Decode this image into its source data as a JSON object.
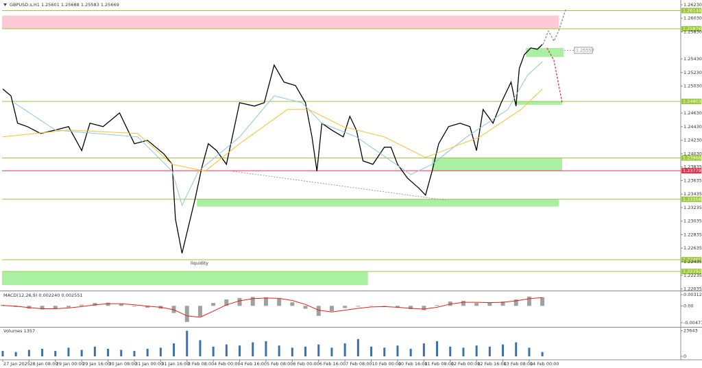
{
  "header": {
    "symbol": "GBPUSD.s,H1",
    "ohlc": [
      1.25601,
      1.25688,
      1.25583,
      1.25669
    ]
  },
  "chart_data": [
    {
      "type": "line",
      "annotation": "liquidity",
      "marker_label": 1.25557,
      "xlim": [
        -0.4,
        411.7
      ],
      "ylim": [
        1.2201,
        1.2627
      ],
      "xticks": [
        {
          "value": 0,
          "label": "27 Jan 2025"
        },
        {
          "value": 16,
          "label": "28 Jan 08:00"
        },
        {
          "value": 32,
          "label": "29 Jan 00:00"
        },
        {
          "value": 48,
          "label": "29 Jan 16:00"
        },
        {
          "value": 64,
          "label": "30 Jan 08:00"
        },
        {
          "value": 80,
          "label": "31 Jan 00:00"
        },
        {
          "value": 96,
          "label": "31 Jan 16:00"
        },
        {
          "value": 112,
          "label": "3 Feb 08:00"
        },
        {
          "value": 128,
          "label": "4 Feb 00:00"
        },
        {
          "value": 144,
          "label": "4 Feb 16:00"
        },
        {
          "value": 160,
          "label": "5 Feb 08:00"
        },
        {
          "value": 176,
          "label": "6 Feb 00:00"
        },
        {
          "value": 192,
          "label": "6 Feb 16:00"
        },
        {
          "value": 208,
          "label": "7 Feb 08:00"
        },
        {
          "value": 224,
          "label": "10 Feb 00:00"
        },
        {
          "value": 240,
          "label": "10 Feb 16:00"
        },
        {
          "value": 256,
          "label": "11 Feb 08:00"
        },
        {
          "value": 272,
          "label": "12 Feb 00:00"
        },
        {
          "value": 288,
          "label": "12 Feb 16:00"
        },
        {
          "value": 304,
          "label": "13 Feb 08:00"
        },
        {
          "value": 320,
          "label": "14 Feb 00:00"
        }
      ],
      "yticks": [
        {
          "value": 1.2623,
          "label": "1.26230"
        },
        {
          "value": 1.2603,
          "label": "1.26030"
        },
        {
          "value": 1.2583,
          "label": "1.25830"
        },
        {
          "value": 1.2543,
          "label": "1.25430"
        },
        {
          "value": 1.2523,
          "label": "1.25230"
        },
        {
          "value": 1.2503,
          "label": "1.25030"
        },
        {
          "value": 1.2463,
          "label": "1.24630"
        },
        {
          "value": 1.2443,
          "label": "1.24430"
        },
        {
          "value": 1.2423,
          "label": "1.24230"
        },
        {
          "value": 1.2403,
          "label": "1.24030"
        },
        {
          "value": 1.23835,
          "label": "1.23835"
        },
        {
          "value": 1.23635,
          "label": "1.23635"
        },
        {
          "value": 1.23435,
          "label": "1.23435"
        },
        {
          "value": 1.23235,
          "label": "1.23235"
        },
        {
          "value": 1.23035,
          "label": "1.23035"
        },
        {
          "value": 1.22835,
          "label": "1.22835"
        },
        {
          "value": 1.22635,
          "label": "1.22635"
        },
        {
          "value": 1.22435,
          "label": "1.22435"
        },
        {
          "value": 1.22235,
          "label": "1.22235"
        },
        {
          "value": 1.22035,
          "label": "1.22035"
        }
      ],
      "zones": [
        {
          "lo": 1.25876,
          "hi": 1.2607,
          "x0": -0.4,
          "x1": 338,
          "color": "#ffcad5"
        },
        {
          "lo": 1.2546,
          "hi": 1.25593,
          "x0": 318,
          "x1": 341,
          "color": "#a9f0a2"
        },
        {
          "lo": 1.24753,
          "hi": 1.24803,
          "x0": 312,
          "x1": 340,
          "color": "#a9f0a2"
        },
        {
          "lo": 1.23779,
          "hi": 1.23968,
          "x0": 261,
          "x1": 340,
          "color": "#a9f0a2"
        },
        {
          "lo": 1.2325,
          "hi": 1.23358,
          "x0": 118,
          "x1": 338,
          "color": "#a9f0a2"
        },
        {
          "lo": 1.2209,
          "hi": 1.22292,
          "x0": -0.4,
          "x1": 222,
          "color": "#a9f0a2"
        }
      ],
      "levels": [
        {
          "value": 1.26144,
          "color": "#9cc640"
        },
        {
          "value": 1.25876,
          "color": "#9cc640"
        },
        {
          "value": 1.24803,
          "color": "#9cc640"
        },
        {
          "value": 1.23968,
          "color": "#9cc640"
        },
        {
          "value": 1.23779,
          "color": "#e0334d"
        },
        {
          "value": 1.23358,
          "color": "#9cc640"
        },
        {
          "value": 1.22465,
          "color": "#9cc640"
        },
        {
          "value": 1.22292,
          "color": "#9cc640"
        }
      ],
      "series": [
        {
          "color": "#000000",
          "width": 1.3,
          "x": [
            0,
            5,
            9,
            15,
            23,
            32,
            40,
            48,
            53,
            61,
            71,
            80,
            88,
            98,
            103,
            105,
            109,
            113,
            117,
            121,
            125,
            130,
            136,
            144,
            153,
            159,
            165,
            171,
            178,
            184,
            188,
            191,
            194,
            200,
            207,
            211,
            215,
            219,
            225,
            232,
            236,
            240,
            246,
            253,
            257,
            261,
            265,
            271,
            278,
            284,
            288,
            292,
            298,
            303,
            309,
            312,
            314,
            317,
            321,
            325,
            328
          ],
          "values": [
            1.24986,
            1.24885,
            1.24481,
            1.2443,
            1.24329,
            1.2438,
            1.2443,
            1.24077,
            1.24481,
            1.2443,
            1.24633,
            1.24178,
            1.24228,
            1.24026,
            1.23874,
            1.23066,
            1.2256,
            1.22965,
            1.23369,
            1.23824,
            1.24178,
            1.24077,
            1.23874,
            1.24784,
            1.24734,
            1.24784,
            1.2534,
            1.25088,
            1.25037,
            1.24784,
            1.24279,
            1.23773,
            1.24481,
            1.2438,
            1.24279,
            1.24583,
            1.2438,
            1.23925,
            1.23874,
            1.24127,
            1.24127,
            1.23874,
            1.23672,
            1.23521,
            1.2342,
            1.23773,
            1.24178,
            1.2443,
            1.24481,
            1.2443,
            1.24077,
            1.24683,
            1.24481,
            1.24784,
            1.25088,
            1.24734,
            1.2529,
            1.25492,
            1.25593,
            1.25573,
            1.25644
          ]
        },
        {
          "color": "#8fc3e0",
          "width": 1,
          "x": [
            7,
            32,
            82,
            103,
            109,
            119,
            144,
            165,
            182,
            194,
            215,
            248,
            261,
            282,
            307,
            319,
            328
          ],
          "values": [
            1.24784,
            1.2438,
            1.24279,
            1.23773,
            1.23268,
            1.23773,
            1.24279,
            1.24885,
            1.24784,
            1.24481,
            1.24279,
            1.23723,
            1.23874,
            1.24279,
            1.24683,
            1.25189,
            1.2539
          ]
        },
        {
          "color": "#f2c230",
          "width": 1,
          "x": [
            0,
            40,
            82,
            103,
            123,
            144,
            173,
            186,
            207,
            232,
            257,
            290,
            315,
            328
          ],
          "values": [
            1.24279,
            1.2438,
            1.24329,
            1.23874,
            1.23773,
            1.24178,
            1.24683,
            1.24683,
            1.2443,
            1.24279,
            1.23975,
            1.24279,
            1.24683,
            1.24986
          ]
        }
      ]
    },
    {
      "type": "bar",
      "title": "MACD(12,26,9) 0.002240 0.002551",
      "xlim": [
        -0.4,
        411.7
      ],
      "ylim": [
        -0.0057,
        0.0039
      ],
      "yticks": [
        0.003121,
        {
          "value": 0,
          "label": "0.00"
        },
        -0.004716
      ],
      "x": [
        0,
        8,
        16,
        24,
        32,
        40,
        48,
        56,
        64,
        72,
        80,
        88,
        96,
        104,
        112,
        120,
        128,
        136,
        144,
        152,
        160,
        168,
        176,
        184,
        192,
        200,
        208,
        216,
        224,
        232,
        240,
        248,
        256,
        264,
        272,
        280,
        288,
        296,
        304,
        312,
        320,
        328
      ],
      "series": [
        {
          "mark": "bar",
          "color": "#a0a0a0",
          "values": [
            0.0003,
            -0.0003,
            -0.0008,
            -0.001,
            -0.0008,
            -0.0004,
            0.0003,
            0.0008,
            0.0009,
            0.0005,
            -0.0002,
            -0.0005,
            -0.0008,
            -0.002,
            -0.0045,
            -0.003,
            0.0008,
            0.0018,
            0.0022,
            0.0025,
            0.0024,
            0.002,
            0.001,
            -0.0008,
            -0.0028,
            -0.0015,
            -0.0006,
            -0.0002,
            0.0001,
            -0.0001,
            -0.0005,
            -0.0009,
            -0.0012,
            0.0002,
            0.0012,
            0.0014,
            0.0008,
            0.0009,
            0.0012,
            0.0018,
            0.0026,
            0.0024
          ]
        },
        {
          "mark": "line",
          "color": "#e0201a",
          "values": [
            0.0001,
            -0.0001,
            -0.0005,
            -0.0008,
            -0.0008,
            -0.0006,
            -0.0002,
            0.0003,
            0.0006,
            0.0006,
            0.0003,
            -0.0001,
            -0.0004,
            -0.0011,
            -0.0028,
            -0.0032,
            -0.0015,
            0.0003,
            0.0014,
            0.002,
            0.0022,
            0.0021,
            0.0015,
            0.0004,
            -0.0012,
            -0.0017,
            -0.0012,
            -0.0007,
            -0.0003,
            -0.0002,
            -0.0004,
            -0.0007,
            -0.0009,
            -0.0004,
            0.0005,
            0.001,
            0.001,
            0.0009,
            0.001,
            0.0014,
            0.002,
            0.0023
          ]
        }
      ]
    },
    {
      "type": "bar",
      "title": "Volumes 1357",
      "xlim": [
        -0.4,
        411.7
      ],
      "ylim": [
        0,
        26000
      ],
      "yticks": [
        23643,
        0
      ],
      "x": [
        0,
        8,
        16,
        24,
        32,
        40,
        48,
        56,
        64,
        72,
        80,
        88,
        96,
        104,
        112,
        120,
        128,
        136,
        144,
        152,
        160,
        168,
        176,
        184,
        192,
        200,
        208,
        216,
        224,
        232,
        240,
        248,
        256,
        264,
        272,
        280,
        288,
        296,
        304,
        312,
        320,
        328
      ],
      "series": [
        {
          "mark": "bar",
          "color": "#3b6fb0",
          "values": [
            5000,
            4000,
            6000,
            7000,
            5000,
            8000,
            6000,
            9000,
            7000,
            6000,
            5000,
            7000,
            8000,
            12000,
            23643,
            15000,
            9000,
            11000,
            10000,
            13000,
            14000,
            10000,
            8000,
            9000,
            11000,
            8000,
            12000,
            16000,
            9000,
            8000,
            10000,
            7000,
            12000,
            14000,
            9000,
            8000,
            10000,
            9000,
            11000,
            13000,
            8000,
            4000
          ]
        }
      ]
    }
  ]
}
